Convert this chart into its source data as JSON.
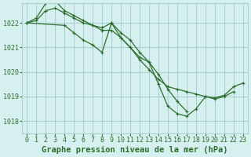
{
  "title": "Graphe pression niveau de la mer (hPa)",
  "bg_color": "#d6f0f0",
  "grid_color": "#aad0d0",
  "line_color": "#2d6e2d",
  "x_values": [
    0,
    1,
    2,
    3,
    4,
    5,
    6,
    7,
    8,
    9,
    10,
    11,
    12,
    13,
    14,
    15,
    16,
    17,
    18,
    19,
    20,
    21,
    22,
    23
  ],
  "series": [
    [
      1022.0,
      1022.1,
      1022.5,
      1022.6,
      1022.4,
      1022.2,
      1022.0,
      1021.9,
      1021.8,
      1022.0,
      1021.6,
      1021.3,
      1020.8,
      1020.4,
      1019.5,
      1018.6,
      1018.3,
      1018.2,
      1018.5,
      1019.0,
      1018.9,
      1019.0,
      1019.2,
      null
    ],
    [
      1022.0,
      1022.2,
      1022.8,
      1022.9,
      1022.5,
      1022.3,
      1022.1,
      1021.9,
      1021.7,
      1021.7,
      1021.4,
      1021.0,
      1020.6,
      1020.4,
      1019.9,
      1019.3,
      1018.8,
      1018.4,
      null,
      null,
      null,
      null,
      null,
      null
    ],
    [
      1022.0,
      null,
      null,
      null,
      1021.9,
      1021.6,
      1021.3,
      1021.1,
      1020.8,
      1022.0,
      1021.4,
      1021.0,
      1020.5,
      1020.1,
      1019.7,
      1019.4,
      1019.3,
      1019.2,
      1019.1,
      1019.0,
      1018.95,
      1019.05,
      1019.4,
      1019.55
    ]
  ],
  "ylim": [
    1017.5,
    1022.8
  ],
  "yticks": [
    1018,
    1019,
    1020,
    1021,
    1022
  ],
  "xticks": [
    0,
    1,
    2,
    3,
    4,
    5,
    6,
    7,
    8,
    9,
    10,
    11,
    12,
    13,
    14,
    15,
    16,
    17,
    18,
    19,
    20,
    21,
    22,
    23
  ],
  "font_color": "#2d6e2d",
  "title_fontsize": 7.5,
  "tick_fontsize": 6
}
